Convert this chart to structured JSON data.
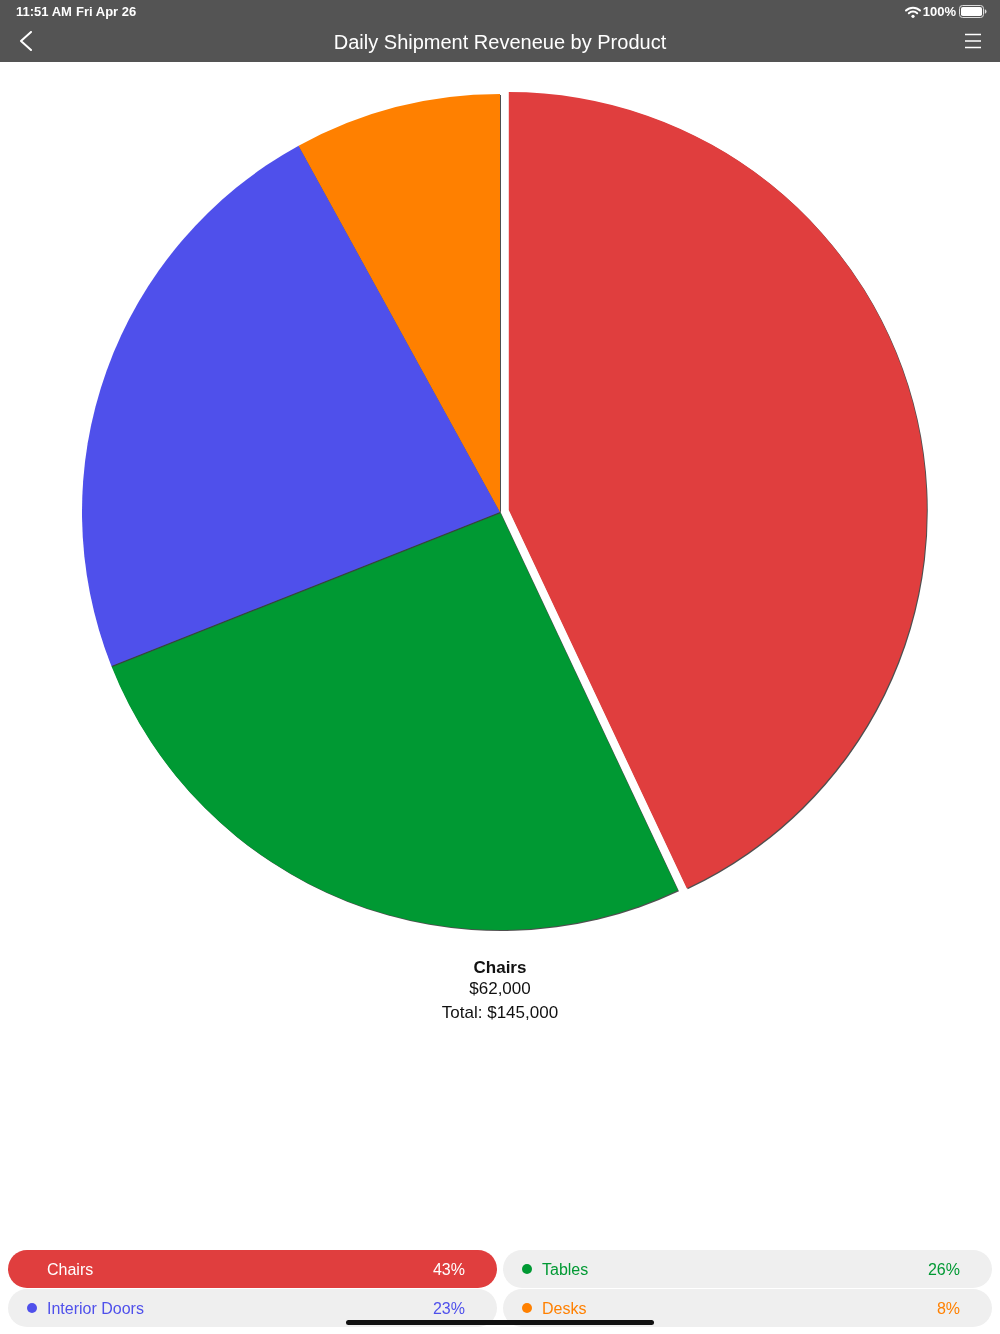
{
  "chart_data": {
    "type": "pie",
    "title": "Daily Shipment Reveneue by Product",
    "categories": [
      "Chairs",
      "Tables",
      "Interior Doors",
      "Desks"
    ],
    "values": [
      43,
      26,
      23,
      8
    ],
    "colors": [
      "#e03e3e",
      "#009933",
      "#4f50eb",
      "#ff8000"
    ],
    "value_labels": [
      "43%",
      "26%",
      "23%",
      "8%"
    ],
    "legend": "bottom",
    "annotations": [
      "11:51 AM",
      "Fri Apr 26",
      "100%",
      "Chairs",
      "$62,000",
      "Total: $145,000"
    ]
  }
}
